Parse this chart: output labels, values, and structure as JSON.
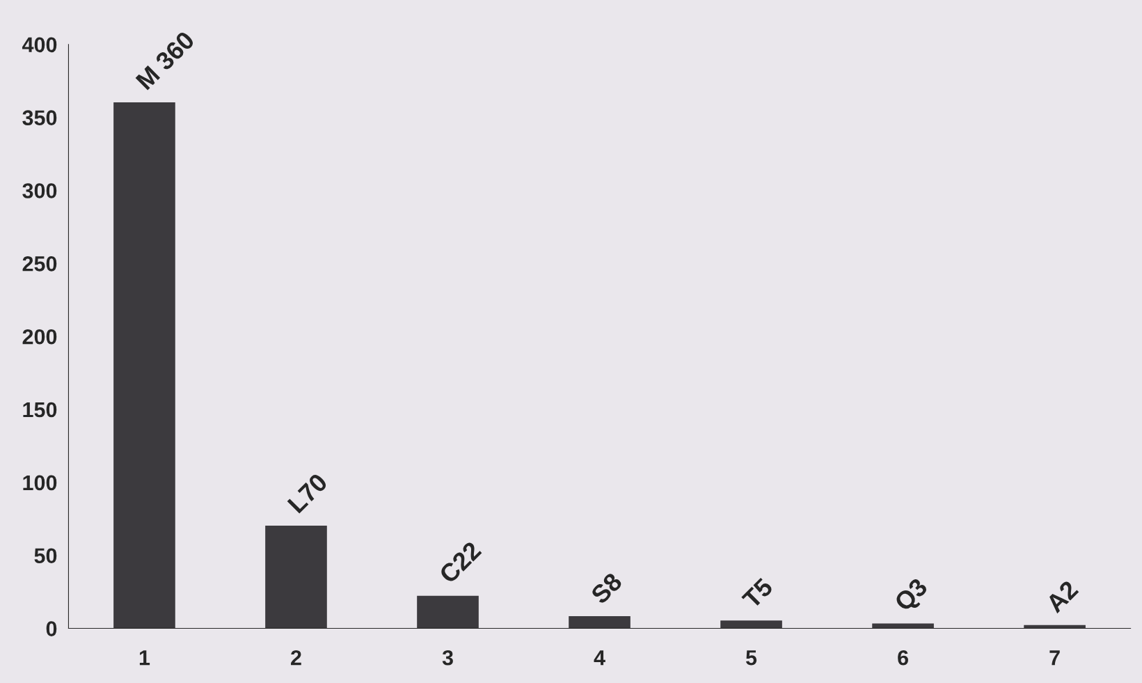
{
  "chart_data": {
    "type": "bar",
    "categories": [
      "1",
      "2",
      "3",
      "4",
      "5",
      "6",
      "7"
    ],
    "values": [
      360,
      70,
      22,
      8,
      5,
      3,
      2
    ],
    "value_labels": [
      "M 360",
      "L70",
      "C22",
      "S8",
      "T5",
      "Q3",
      "A2"
    ],
    "color": "#3c3a3e",
    "ylim": [
      0,
      400
    ],
    "yticks": [
      0,
      50,
      100,
      150,
      200,
      250,
      300,
      350,
      400
    ],
    "grid": false
  }
}
